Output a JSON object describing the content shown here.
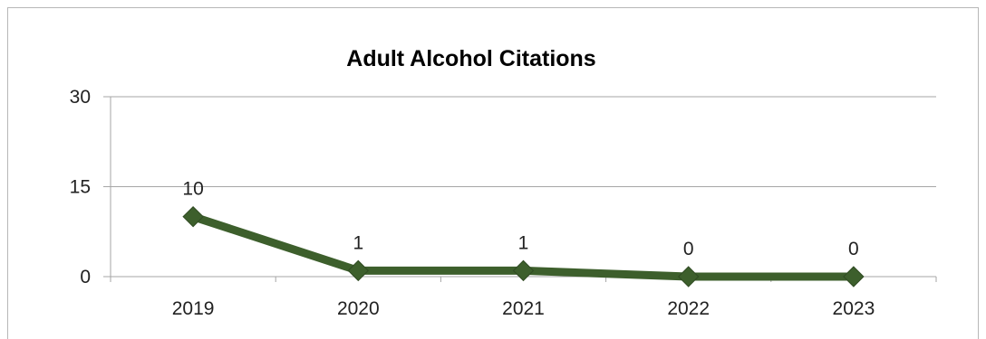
{
  "chart_data": {
    "type": "line",
    "title": "Adult Alcohol Citations",
    "xlabel": "",
    "ylabel": "",
    "categories": [
      "2019",
      "2020",
      "2021",
      "2022",
      "2023"
    ],
    "series": [
      {
        "values": [
          10,
          1,
          1,
          0,
          0
        ],
        "data_labels": [
          "10",
          "1",
          "1",
          "0",
          "0"
        ]
      }
    ],
    "ylim": [
      0,
      30
    ],
    "yticks": [
      0,
      15,
      30
    ],
    "ytick_labels": [
      "0",
      "15",
      "30"
    ],
    "grid": true,
    "legend": "none",
    "line_color": "#3d5f2c",
    "marker": "diamond"
  }
}
